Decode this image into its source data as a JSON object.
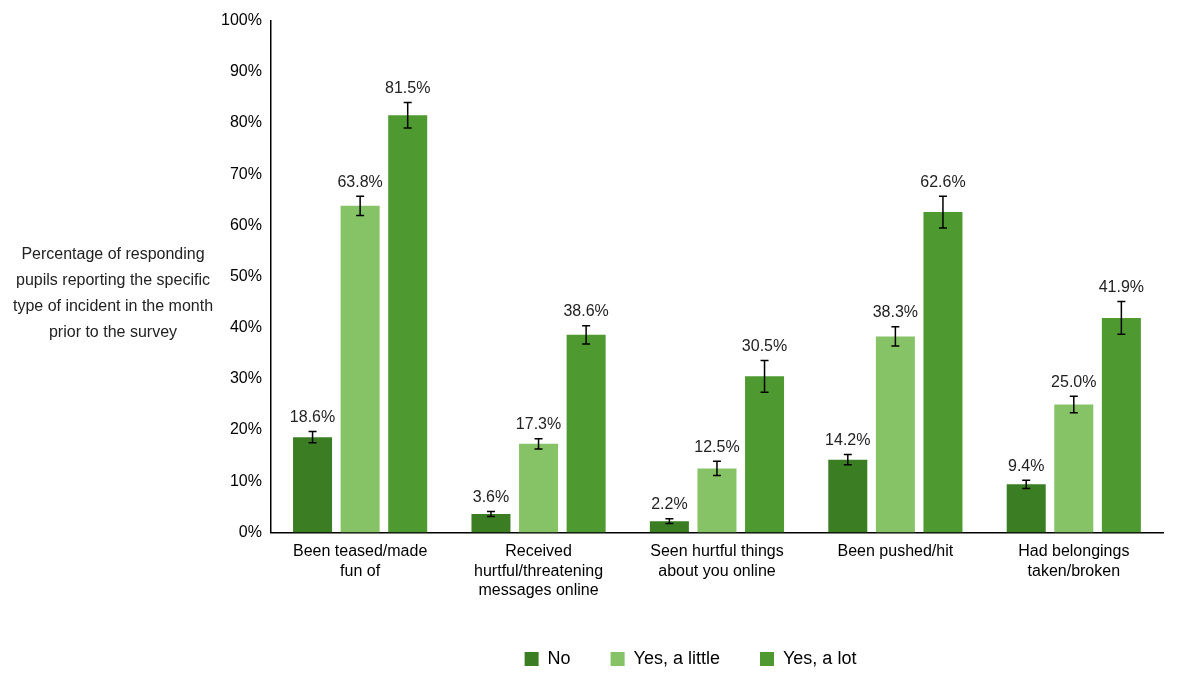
{
  "chart_data": {
    "type": "bar",
    "ylabel": "Percentage of responding pupils reporting the specific type of incident in the month prior to the survey",
    "categories": [
      "Been teased/made fun of",
      "Received hurtful/threatening messages online",
      "Seen hurtful things about you online",
      "Been pushed/hit",
      "Had belongings taken/broken"
    ],
    "series": [
      {
        "name": "No",
        "color": "#3b7d23",
        "values": [
          18.6,
          3.6,
          2.2,
          14.2,
          9.4
        ],
        "errors": [
          1.1,
          0.5,
          0.45,
          1.0,
          0.8
        ],
        "value_labels": [
          "18.6%",
          "3.6%",
          "2.2%",
          "14.2%",
          "9.4%"
        ]
      },
      {
        "name": "Yes, a little",
        "color": "#86c266",
        "values": [
          63.8,
          17.3,
          12.5,
          38.3,
          25.0
        ],
        "errors": [
          1.9,
          1.0,
          1.4,
          1.9,
          1.6
        ],
        "value_labels": [
          "63.8%",
          "17.3%",
          "12.5%",
          "38.3%",
          "25.0%"
        ]
      },
      {
        "name": "Yes, a lot",
        "color": "#4f9a30",
        "values": [
          81.5,
          38.6,
          30.5,
          62.6,
          41.9
        ],
        "errors": [
          2.5,
          1.8,
          3.1,
          3.1,
          3.2
        ],
        "value_labels": [
          "81.5%",
          "38.6%",
          "30.5%",
          "62.6%",
          "41.9%"
        ]
      }
    ],
    "ylim": [
      0,
      100
    ],
    "yticks": [
      {
        "value": 0,
        "label": "0%"
      },
      {
        "value": 10,
        "label": "10%"
      },
      {
        "value": 20,
        "label": "20%"
      },
      {
        "value": 30,
        "label": "30%"
      },
      {
        "value": 40,
        "label": "40%"
      },
      {
        "value": 50,
        "label": "50%"
      },
      {
        "value": 60,
        "label": "60%"
      },
      {
        "value": 70,
        "label": "70%"
      },
      {
        "value": 80,
        "label": "80%"
      },
      {
        "value": 90,
        "label": "90%"
      },
      {
        "value": 100,
        "label": "100%"
      }
    ],
    "grid": false,
    "legend": "bottom"
  }
}
